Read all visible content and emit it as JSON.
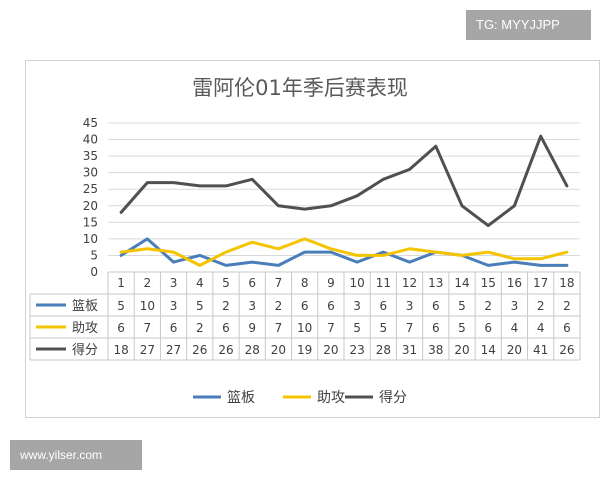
{
  "watermark_top": "TG: MYYJJPP",
  "watermark_bottom": "www.yilser.com",
  "chart_data": {
    "type": "line",
    "title": "雷阿伦01年季后赛表现",
    "xlabel": "",
    "ylabel": "",
    "categories": [
      "1",
      "2",
      "3",
      "4",
      "5",
      "6",
      "7",
      "8",
      "9",
      "10",
      "11",
      "12",
      "13",
      "14",
      "15",
      "16",
      "17",
      "18"
    ],
    "ylim": [
      0,
      45
    ],
    "yticks": [
      "0",
      "5",
      "10",
      "15",
      "20",
      "25",
      "30",
      "35",
      "40",
      "45"
    ],
    "grid": true,
    "legend_position": "bottom",
    "data_table": true,
    "series": [
      {
        "name": "篮板",
        "color": "#4a7ebb",
        "values": [
          5,
          10,
          3,
          5,
          2,
          3,
          2,
          6,
          6,
          3,
          6,
          3,
          6,
          5,
          2,
          3,
          2,
          2
        ]
      },
      {
        "name": "助攻",
        "color": "#f5c400",
        "values": [
          6,
          7,
          6,
          2,
          6,
          9,
          7,
          10,
          7,
          5,
          5,
          7,
          6,
          5,
          6,
          4,
          4,
          6
        ]
      },
      {
        "name": "得分",
        "color": "#505050",
        "values": [
          18,
          27,
          27,
          26,
          26,
          28,
          20,
          19,
          20,
          23,
          28,
          31,
          38,
          20,
          14,
          20,
          41,
          26
        ]
      }
    ]
  }
}
